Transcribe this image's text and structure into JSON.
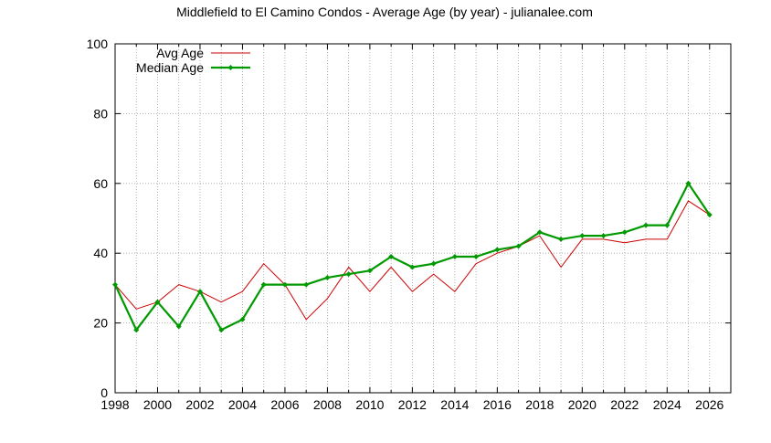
{
  "chart_data": {
    "type": "line",
    "title": "Middlefield to El Camino Condos - Average Age (by year) - julianalee.com",
    "xlabel": "",
    "ylabel": "",
    "xlim": [
      1998,
      2027
    ],
    "ylim": [
      0,
      100
    ],
    "x_ticks": [
      "1998",
      "2000",
      "2002",
      "2004",
      "2006",
      "2008",
      "2010",
      "2012",
      "2014",
      "2016",
      "2018",
      "2020",
      "2022",
      "2024",
      "2026"
    ],
    "y_ticks": [
      "0",
      "20",
      "40",
      "60",
      "80",
      "100"
    ],
    "grid": true,
    "legend_position": "top-left",
    "x": [
      1998,
      1999,
      2000,
      2001,
      2002,
      2003,
      2004,
      2005,
      2006,
      2007,
      2008,
      2009,
      2010,
      2011,
      2012,
      2013,
      2014,
      2015,
      2016,
      2017,
      2018,
      2019,
      2020,
      2021,
      2022,
      2023,
      2024,
      2025,
      2026
    ],
    "series": [
      {
        "name": "Avg Age",
        "color": "#cc0000",
        "marker": "none",
        "values": [
          31,
          24,
          26,
          31,
          29,
          26,
          29,
          37,
          31,
          21,
          27,
          36,
          29,
          36,
          29,
          34,
          29,
          37,
          40,
          42,
          45,
          36,
          44,
          44,
          43,
          44,
          44,
          55,
          51
        ]
      },
      {
        "name": "Median Age",
        "color": "#009900",
        "marker": "diamond",
        "values": [
          31,
          18,
          26,
          19,
          29,
          18,
          21,
          31,
          31,
          31,
          33,
          34,
          35,
          39,
          36,
          37,
          39,
          39,
          41,
          42,
          46,
          44,
          45,
          45,
          46,
          48,
          48,
          60,
          51
        ]
      }
    ]
  }
}
